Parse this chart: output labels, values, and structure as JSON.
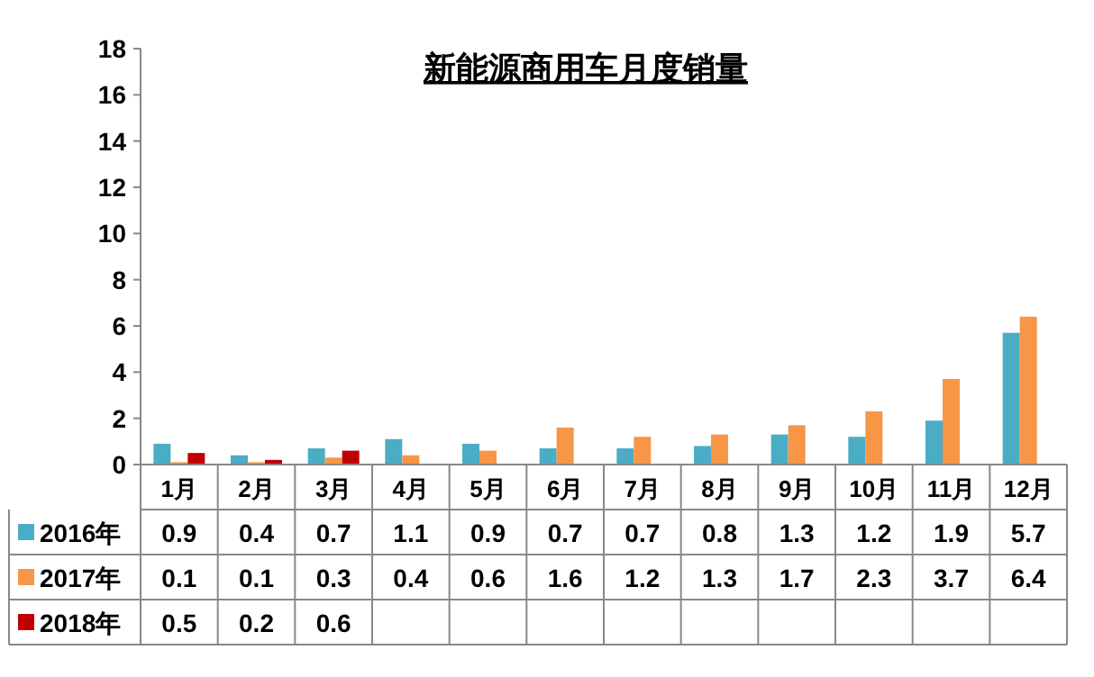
{
  "chart_data": {
    "type": "bar",
    "title": "新能源商用车月度销量",
    "categories": [
      "1月",
      "2月",
      "3月",
      "4月",
      "5月",
      "6月",
      "7月",
      "8月",
      "9月",
      "10月",
      "11月",
      "12月"
    ],
    "series": [
      {
        "name": "2016年",
        "color": "#4bacc6",
        "values": [
          0.9,
          0.4,
          0.7,
          1.1,
          0.9,
          0.7,
          0.7,
          0.8,
          1.3,
          1.2,
          1.9,
          5.7
        ]
      },
      {
        "name": "2017年",
        "color": "#f79646",
        "values": [
          0.1,
          0.1,
          0.3,
          0.4,
          0.6,
          1.6,
          1.2,
          1.3,
          1.7,
          2.3,
          3.7,
          6.4
        ]
      },
      {
        "name": "2018年",
        "color": "#c00000",
        "values": [
          0.5,
          0.2,
          0.6,
          null,
          null,
          null,
          null,
          null,
          null,
          null,
          null,
          null
        ]
      }
    ],
    "ylim": [
      0,
      18
    ],
    "yticks": [
      0,
      2,
      4,
      6,
      8,
      10,
      12,
      14,
      16,
      18
    ],
    "data_labels": true,
    "legend": "bottom"
  }
}
